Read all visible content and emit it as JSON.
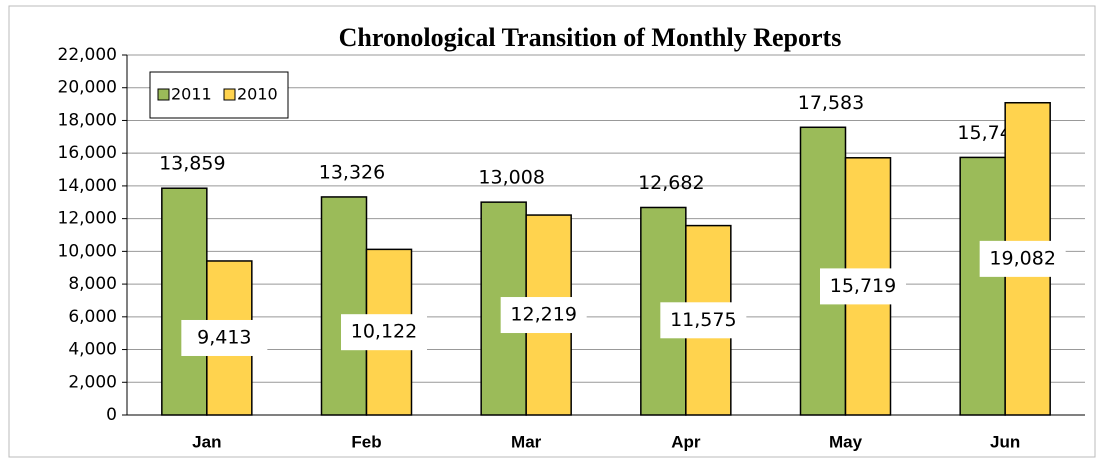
{
  "chart_data": {
    "type": "bar",
    "title": "Chronological Transition of Monthly Reports",
    "categories": [
      "Jan",
      "Feb",
      "Mar",
      "Apr",
      "May",
      "Jun"
    ],
    "series": [
      {
        "name": "2011",
        "color": "#9bbb59",
        "values": [
          13859,
          13326,
          13008,
          12682,
          17583,
          15742
        ],
        "value_labels": [
          "13,859",
          "13,326",
          "13,008",
          "12,682",
          "17,583",
          "15,742"
        ]
      },
      {
        "name": "2010",
        "color": "#ffd34e",
        "values": [
          9413,
          10122,
          12219,
          11575,
          15719,
          19082
        ],
        "value_labels": [
          "9,413",
          "10,122",
          "12,219",
          "11,575",
          "15,719",
          "19,082"
        ]
      }
    ],
    "ylim": [
      0,
      22000
    ],
    "yticks": [
      0,
      {
        "value": 2000,
        "label": "2,000"
      },
      {
        "value": 4000,
        "label": "4,000"
      },
      {
        "value": 6000,
        "label": "6,000"
      },
      {
        "value": 8000,
        "label": "8,000"
      },
      {
        "value": 10000,
        "label": "10,000"
      },
      {
        "value": 12000,
        "label": "12,000"
      },
      {
        "value": 14000,
        "label": "14,000"
      },
      {
        "value": 16000,
        "label": "16,000"
      },
      {
        "value": 18000,
        "label": "18,000"
      },
      {
        "value": 20000,
        "label": "20,000"
      },
      {
        "value": 22000,
        "label": "22,000"
      }
    ],
    "grid": true,
    "legend": "top-left"
  }
}
